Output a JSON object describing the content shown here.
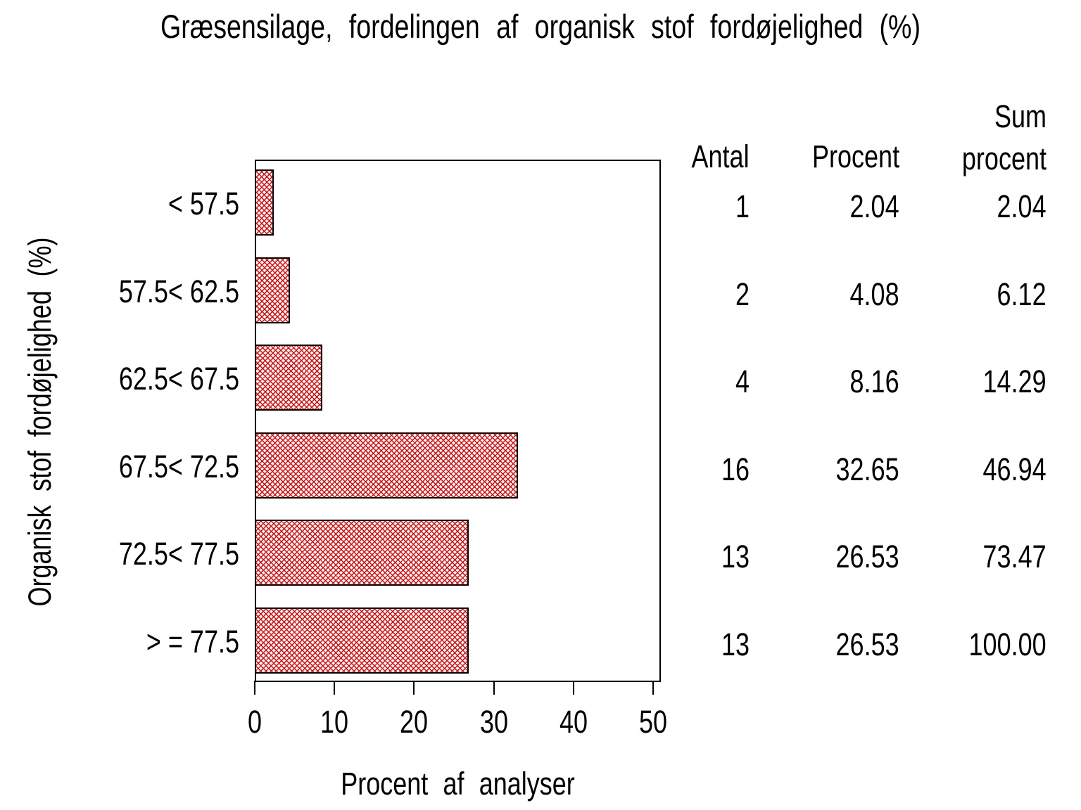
{
  "title": "Græsensilage, fordelingen af organisk stof fordøjelighed (%)",
  "chart_data": {
    "type": "bar",
    "orientation": "horizontal",
    "title": "Græsensilage, fordelingen af organisk stof fordøjelighed (%)",
    "xlabel": "Procent af analyser",
    "ylabel": "Organisk stof fordøjelighed (%)",
    "xlim": [
      0,
      50
    ],
    "x_ticks": [
      0,
      10,
      20,
      30,
      40,
      50
    ],
    "grid": false,
    "legend": "none",
    "bar_pattern": "red diagonal crosshatch on white",
    "pattern_color": "#f00000",
    "bar_border_color": "#000000",
    "categories": [
      "< 57.5",
      "57.5< 62.5",
      "62.5< 67.5",
      "67.5< 72.5",
      "72.5< 77.5",
      "> = 77.5"
    ],
    "bar_length_series": "Procent",
    "series": [
      {
        "name": "Antal",
        "values": [
          1,
          2,
          4,
          16,
          13,
          13
        ]
      },
      {
        "name": "Procent",
        "values": [
          2.04,
          4.08,
          8.16,
          32.65,
          26.53,
          26.53
        ]
      },
      {
        "name": "Sum procent",
        "values": [
          2.04,
          6.12,
          14.29,
          46.94,
          73.47,
          100.0
        ]
      }
    ]
  },
  "table": {
    "headers": [
      "Antal",
      "Procent",
      "Sum procent"
    ],
    "rows": [
      [
        "1",
        "2.04",
        "2.04"
      ],
      [
        "2",
        "4.08",
        "6.12"
      ],
      [
        "4",
        "8.16",
        "14.29"
      ],
      [
        "16",
        "32.65",
        "46.94"
      ],
      [
        "13",
        "26.53",
        "73.47"
      ],
      [
        "13",
        "26.53",
        "100.00"
      ]
    ]
  }
}
